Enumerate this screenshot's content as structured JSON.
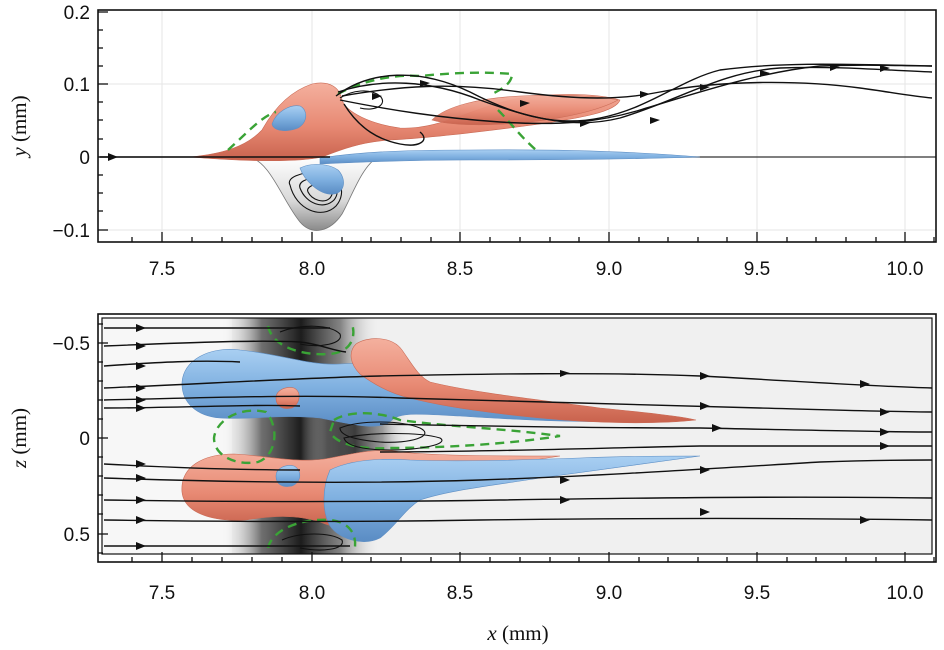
{
  "panels": [
    {
      "id": "top",
      "ylabel_var": "y",
      "ylabel_unit": " (mm)",
      "xlim": [
        7.3,
        10.1
      ],
      "ylim": [
        -0.11,
        0.2
      ],
      "x_ticks": [
        "7.5",
        "8.0",
        "8.5",
        "9.0",
        "9.5",
        "10.0"
      ],
      "y_ticks": [
        "0.2",
        "0.1",
        "0",
        "−0.1"
      ]
    },
    {
      "id": "bottom",
      "ylabel_var": "z",
      "ylabel_unit": " (mm)",
      "xlim": [
        7.3,
        10.1
      ],
      "ylim": [
        -0.6,
        0.6
      ],
      "x_ticks": [
        "7.5",
        "8.0",
        "8.5",
        "9.0",
        "9.5",
        "10.0"
      ],
      "y_ticks": [
        "−0.5",
        "0",
        "0.5"
      ]
    }
  ],
  "xlabel_var": "x",
  "xlabel_unit": " (mm)",
  "colors": {
    "positive_isosurface": "#e98a75",
    "negative_isosurface": "#7fb0e0",
    "separation_contour": "#3aa336",
    "streamlines": "#111111"
  }
}
